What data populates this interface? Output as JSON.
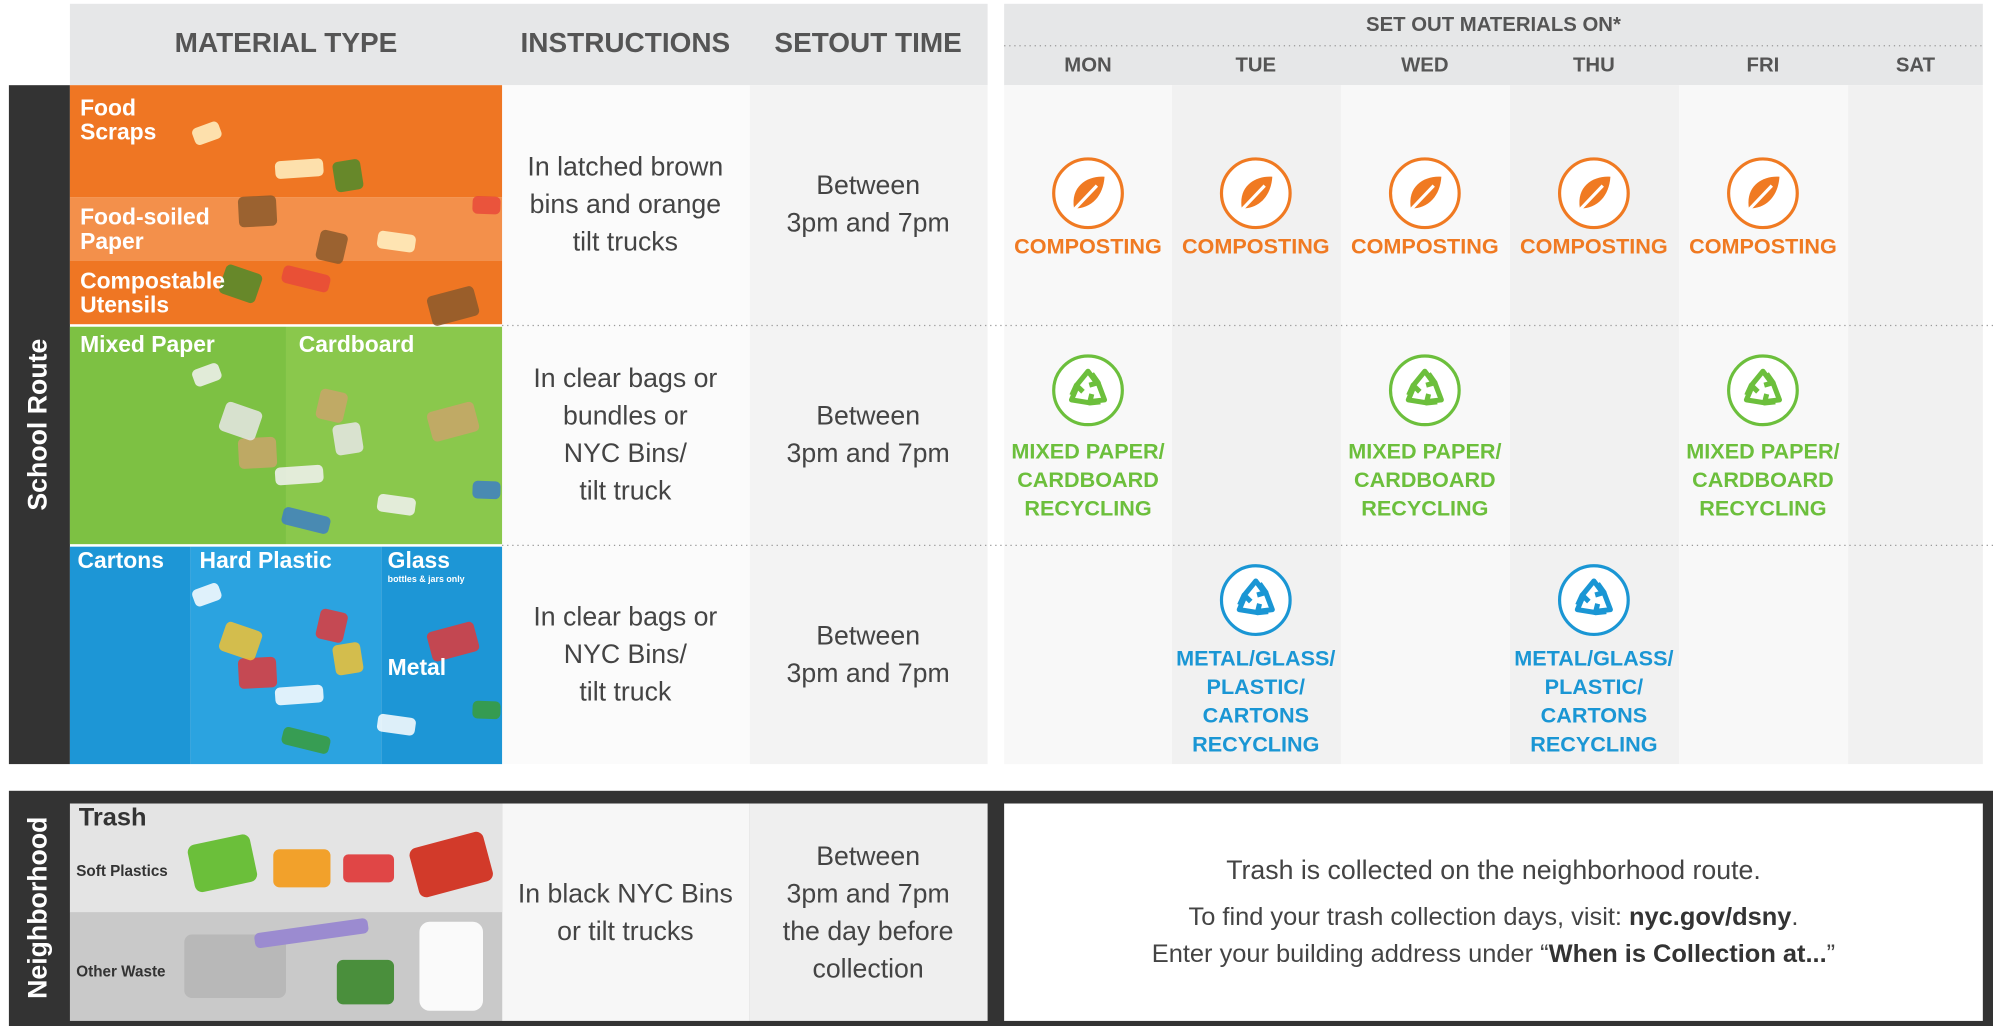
{
  "header": {
    "material_type": "MATERIAL TYPE",
    "instructions": "INSTRUCTIONS",
    "setout_time": "SETOUT TIME",
    "set_out_on": "SET OUT MATERIALS ON*",
    "days": [
      "MON",
      "TUE",
      "WED",
      "THU",
      "FRI",
      "SAT"
    ]
  },
  "school_route": {
    "label": "School Route",
    "rows": [
      {
        "color": "#f07a22",
        "icon": "leaf",
        "materials": [
          {
            "lines": [
              "Food",
              "Scraps"
            ]
          },
          {
            "lines": [
              "Food-soiled",
              "Paper"
            ]
          },
          {
            "lines": [
              "Compostable",
              "Utensils"
            ]
          }
        ],
        "instructions": [
          "In latched brown",
          "bins and orange",
          "tilt trucks"
        ],
        "setout": [
          "Between",
          "3pm and 7pm"
        ],
        "stream": [
          "COMPOSTING"
        ],
        "days": [
          true,
          true,
          true,
          true,
          true,
          false
        ]
      },
      {
        "color": "#6cbf3c",
        "icon": "recycle",
        "materials": [
          {
            "lines": [
              "Mixed Paper"
            ]
          },
          {
            "lines": [
              "Cardboard"
            ]
          }
        ],
        "instructions": [
          "In clear bags or",
          "bundles or",
          "NYC Bins/",
          "tilt truck"
        ],
        "setout": [
          "Between",
          "3pm and 7pm"
        ],
        "stream": [
          "MIXED PAPER/",
          "CARDBOARD",
          "RECYCLING"
        ],
        "days": [
          true,
          false,
          true,
          false,
          true,
          false
        ]
      },
      {
        "color": "#1a96d4",
        "icon": "recycle",
        "materials": [
          {
            "lines": [
              "Cartons"
            ]
          },
          {
            "lines": [
              "Hard Plastic"
            ]
          },
          {
            "lines": [
              "Glass"
            ],
            "note": "bottles & jars only"
          },
          {
            "lines": [
              "Metal"
            ]
          }
        ],
        "instructions": [
          "In clear bags or",
          "NYC Bins/",
          "tilt truck"
        ],
        "setout": [
          "Between",
          "3pm and 7pm"
        ],
        "stream": [
          "METAL/GLASS/",
          "PLASTIC/",
          "CARTONS",
          "RECYCLING"
        ],
        "days": [
          false,
          true,
          false,
          true,
          false,
          false
        ]
      }
    ]
  },
  "neighborhood": {
    "label": "Neighborhood",
    "material": "Trash",
    "items": [
      "Soft Plastics",
      "Other Waste"
    ],
    "instructions": [
      "In black NYC Bins",
      "or tilt trucks"
    ],
    "setout": [
      "Between",
      "3pm and 7pm",
      "the day before",
      "collection"
    ],
    "message": {
      "line1": "Trash is collected on the neighborhood route.",
      "line2": [
        "To find your trash collection days, visit: ",
        "nyc.gov/dsny",
        "."
      ],
      "line3": [
        "Enter your building address under “",
        "When is Collection at...",
        "”"
      ]
    }
  }
}
